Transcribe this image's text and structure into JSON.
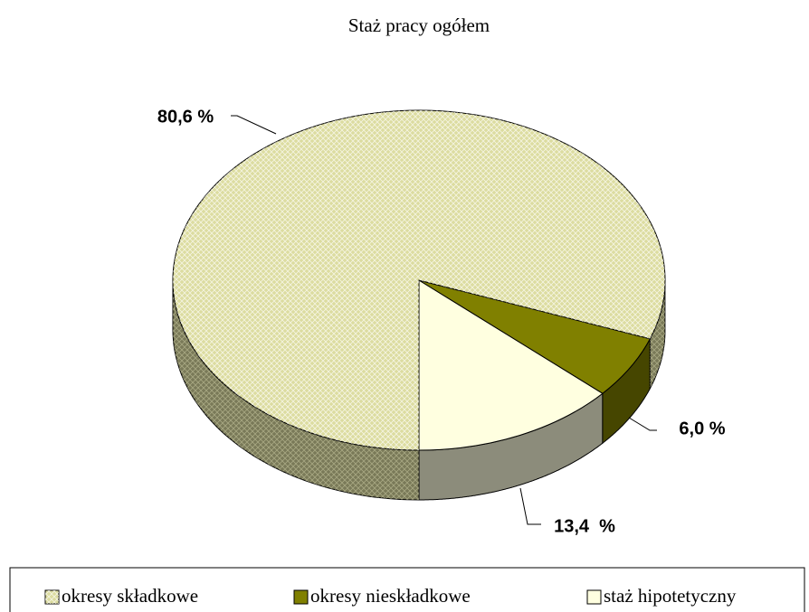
{
  "chart_data": {
    "type": "pie",
    "title": "Staż pracy ogółem",
    "categories": [
      "okresy składkowe",
      "okresy nieskładkowe",
      "staż hipotetyczny"
    ],
    "values": [
      80.6,
      6.0,
      13.4
    ],
    "value_labels": [
      "80,6 %",
      "6,0 %",
      "13,4  %"
    ],
    "colors": [
      "#dcdca0",
      "#808000",
      "#ffffe0"
    ],
    "legend": "bottom"
  }
}
